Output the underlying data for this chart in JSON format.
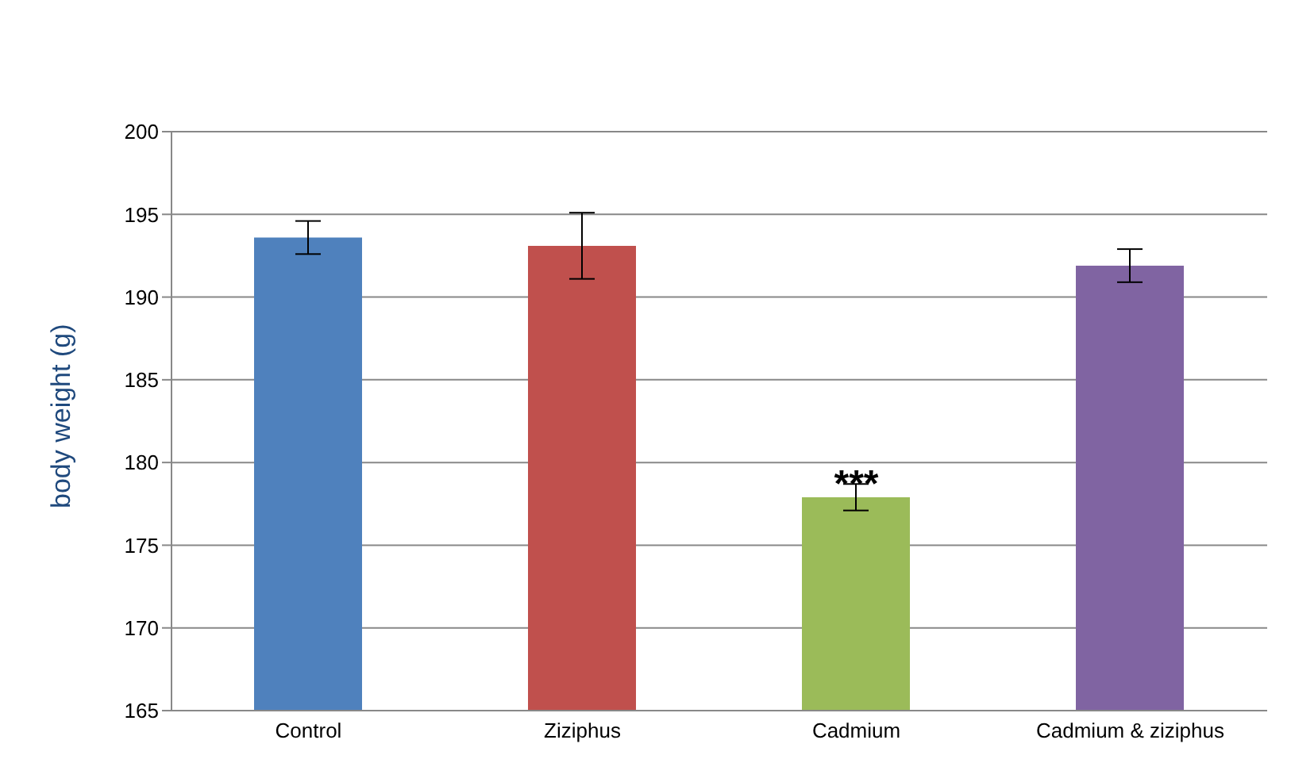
{
  "chart_data": {
    "type": "bar",
    "ylabel": "body weight (g)",
    "categories": [
      "Control",
      "Ziziphus",
      "Cadmium",
      "Cadmium  & ziziphus"
    ],
    "values": [
      193.6,
      193.1,
      177.9,
      191.9
    ],
    "errors": [
      1,
      2,
      0.8,
      1
    ],
    "colors": [
      "#4f81bd",
      "#c0504d",
      "#9bbb59",
      "#8064a2"
    ],
    "ylim": [
      165,
      200
    ],
    "yticks": [
      165,
      170,
      175,
      180,
      185,
      190,
      195,
      200
    ],
    "grid": "y",
    "annotations": [
      {
        "text": "***",
        "x": "Cadmium",
        "y": 178.7
      }
    ]
  }
}
